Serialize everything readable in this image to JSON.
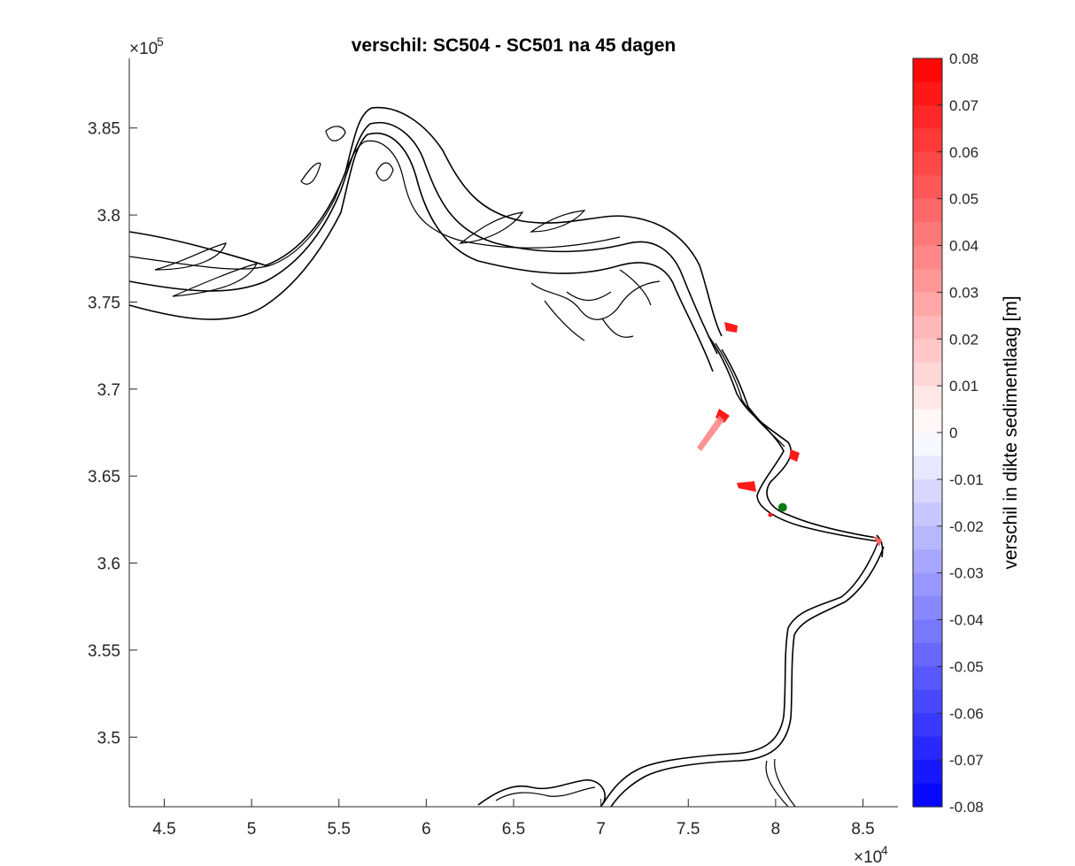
{
  "chart_data": {
    "type": "heatmap",
    "title": "verschil: SC504 - SC501 na 45 dagen",
    "xlim": [
      43000,
      87000
    ],
    "ylim": [
      346000,
      389000
    ],
    "x_ticks": [
      45000,
      50000,
      55000,
      60000,
      65000,
      70000,
      75000,
      80000,
      85000
    ],
    "x_tick_labels": [
      "4.5",
      "5",
      "5.5",
      "6",
      "6.5",
      "7",
      "7.5",
      "8",
      "8.5"
    ],
    "x_exponent": "×10",
    "x_exponent_power": "4",
    "y_ticks": [
      350000,
      355000,
      360000,
      365000,
      370000,
      375000,
      380000,
      385000
    ],
    "y_tick_labels": [
      "3.5",
      "3.55",
      "3.6",
      "3.65",
      "3.7",
      "3.75",
      "3.8",
      "3.85"
    ],
    "y_exponent": "×10",
    "y_exponent_power": "5",
    "colorbar": {
      "label": "verschil in dikte sedimentlaag [m]",
      "range": [
        -0.08,
        0.08
      ],
      "levels": 32,
      "ticks": [
        0.08,
        0.07,
        0.06,
        0.05,
        0.04,
        0.03,
        0.02,
        0.01,
        0,
        -0.01,
        -0.02,
        -0.03,
        -0.04,
        -0.05,
        -0.06,
        -0.07,
        -0.08
      ],
      "tick_labels": [
        "0.08",
        "0.07",
        "0.06",
        "0.05",
        "0.04",
        "0.03",
        "0.02",
        "0.01",
        "0",
        "-0.01",
        "-0.02",
        "-0.03",
        "-0.04",
        "-0.05",
        "-0.06",
        "-0.07",
        "-0.08"
      ],
      "colors": {
        "positive": "#ff0000",
        "negative": "#0000ff",
        "zero": "#ffffff"
      }
    },
    "marker": {
      "x": 80400,
      "y": 363200,
      "color": "#0a7a14"
    },
    "difference_patches": [
      {
        "x": 77200,
        "y": 373600,
        "value": 0.08
      },
      {
        "x": 77000,
        "y": 368800,
        "value": 0.08
      },
      {
        "x": 76200,
        "y": 367200,
        "value": 0.03
      },
      {
        "x": 81200,
        "y": 366200,
        "value": 0.08
      },
      {
        "x": 78200,
        "y": 364400,
        "value": 0.08
      },
      {
        "x": 85800,
        "y": 361400,
        "value": 0.05
      }
    ],
    "grid": false
  }
}
